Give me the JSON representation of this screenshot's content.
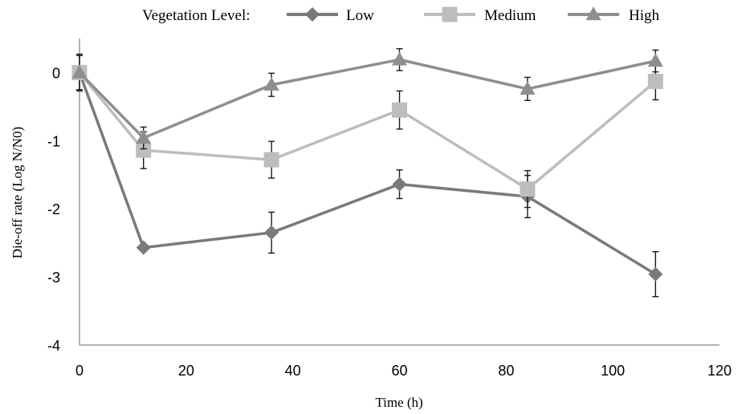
{
  "chart_data": {
    "type": "line",
    "title": "",
    "xlabel": "Time (h)",
    "ylabel": "Die-off rate (Log N/N0)",
    "xlim": [
      0,
      120
    ],
    "ylim": [
      -4,
      0.5
    ],
    "x_ticks": [
      0,
      20,
      40,
      60,
      80,
      100,
      120
    ],
    "y_ticks": [
      0,
      -1,
      -2,
      -3,
      -4
    ],
    "x_tick_labels": [
      "0",
      "20",
      "40",
      "60",
      "80",
      "100",
      "120"
    ],
    "y_tick_labels": [
      "0",
      "-1",
      "-2",
      "-3",
      "-4"
    ],
    "grid": false,
    "legend": {
      "title": "Vegetation Level:",
      "position": "top"
    },
    "x": [
      0,
      12,
      36,
      60,
      84,
      108
    ],
    "series": [
      {
        "name": "Low",
        "marker": "diamond",
        "color": "#7a7a7a",
        "values": [
          0,
          -2.57,
          -2.35,
          -1.64,
          -1.82,
          -2.96
        ],
        "errors": [
          0.27,
          0,
          0.3,
          0.21,
          0.31,
          0.33
        ]
      },
      {
        "name": "Medium",
        "marker": "square",
        "color": "#bdbdbd",
        "values": [
          0,
          -1.14,
          -1.28,
          -0.55,
          -1.71,
          -0.13
        ],
        "errors": [
          0.25,
          0.27,
          0.27,
          0.28,
          0.27,
          0.27
        ]
      },
      {
        "name": "High",
        "marker": "triangle",
        "color": "#8e8e8e",
        "values": [
          0,
          -0.96,
          -0.18,
          0.19,
          -0.24,
          0.17
        ],
        "errors": [
          0,
          0.16,
          0.17,
          0.16,
          0.17,
          0.16
        ]
      }
    ]
  }
}
